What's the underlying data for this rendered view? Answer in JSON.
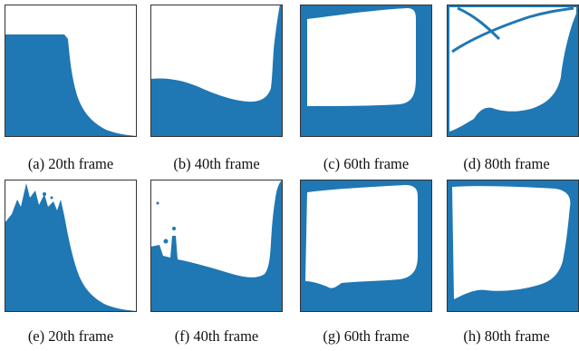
{
  "fluid_color": "#1f77b4",
  "frame_border_color": "#333333",
  "rows": [
    {
      "panels": [
        {
          "id": "a",
          "caption": "(a) 20th frame"
        },
        {
          "id": "b",
          "caption": "(b) 40th frame"
        },
        {
          "id": "c",
          "caption": "(c) 60th frame"
        },
        {
          "id": "d",
          "caption": "(d) 80th frame"
        }
      ]
    },
    {
      "panels": [
        {
          "id": "e",
          "caption": "(e) 20th frame"
        },
        {
          "id": "f",
          "caption": "(f) 40th frame"
        },
        {
          "id": "g",
          "caption": "(g) 60th frame"
        },
        {
          "id": "h",
          "caption": "(h) 80th frame"
        }
      ]
    }
  ]
}
